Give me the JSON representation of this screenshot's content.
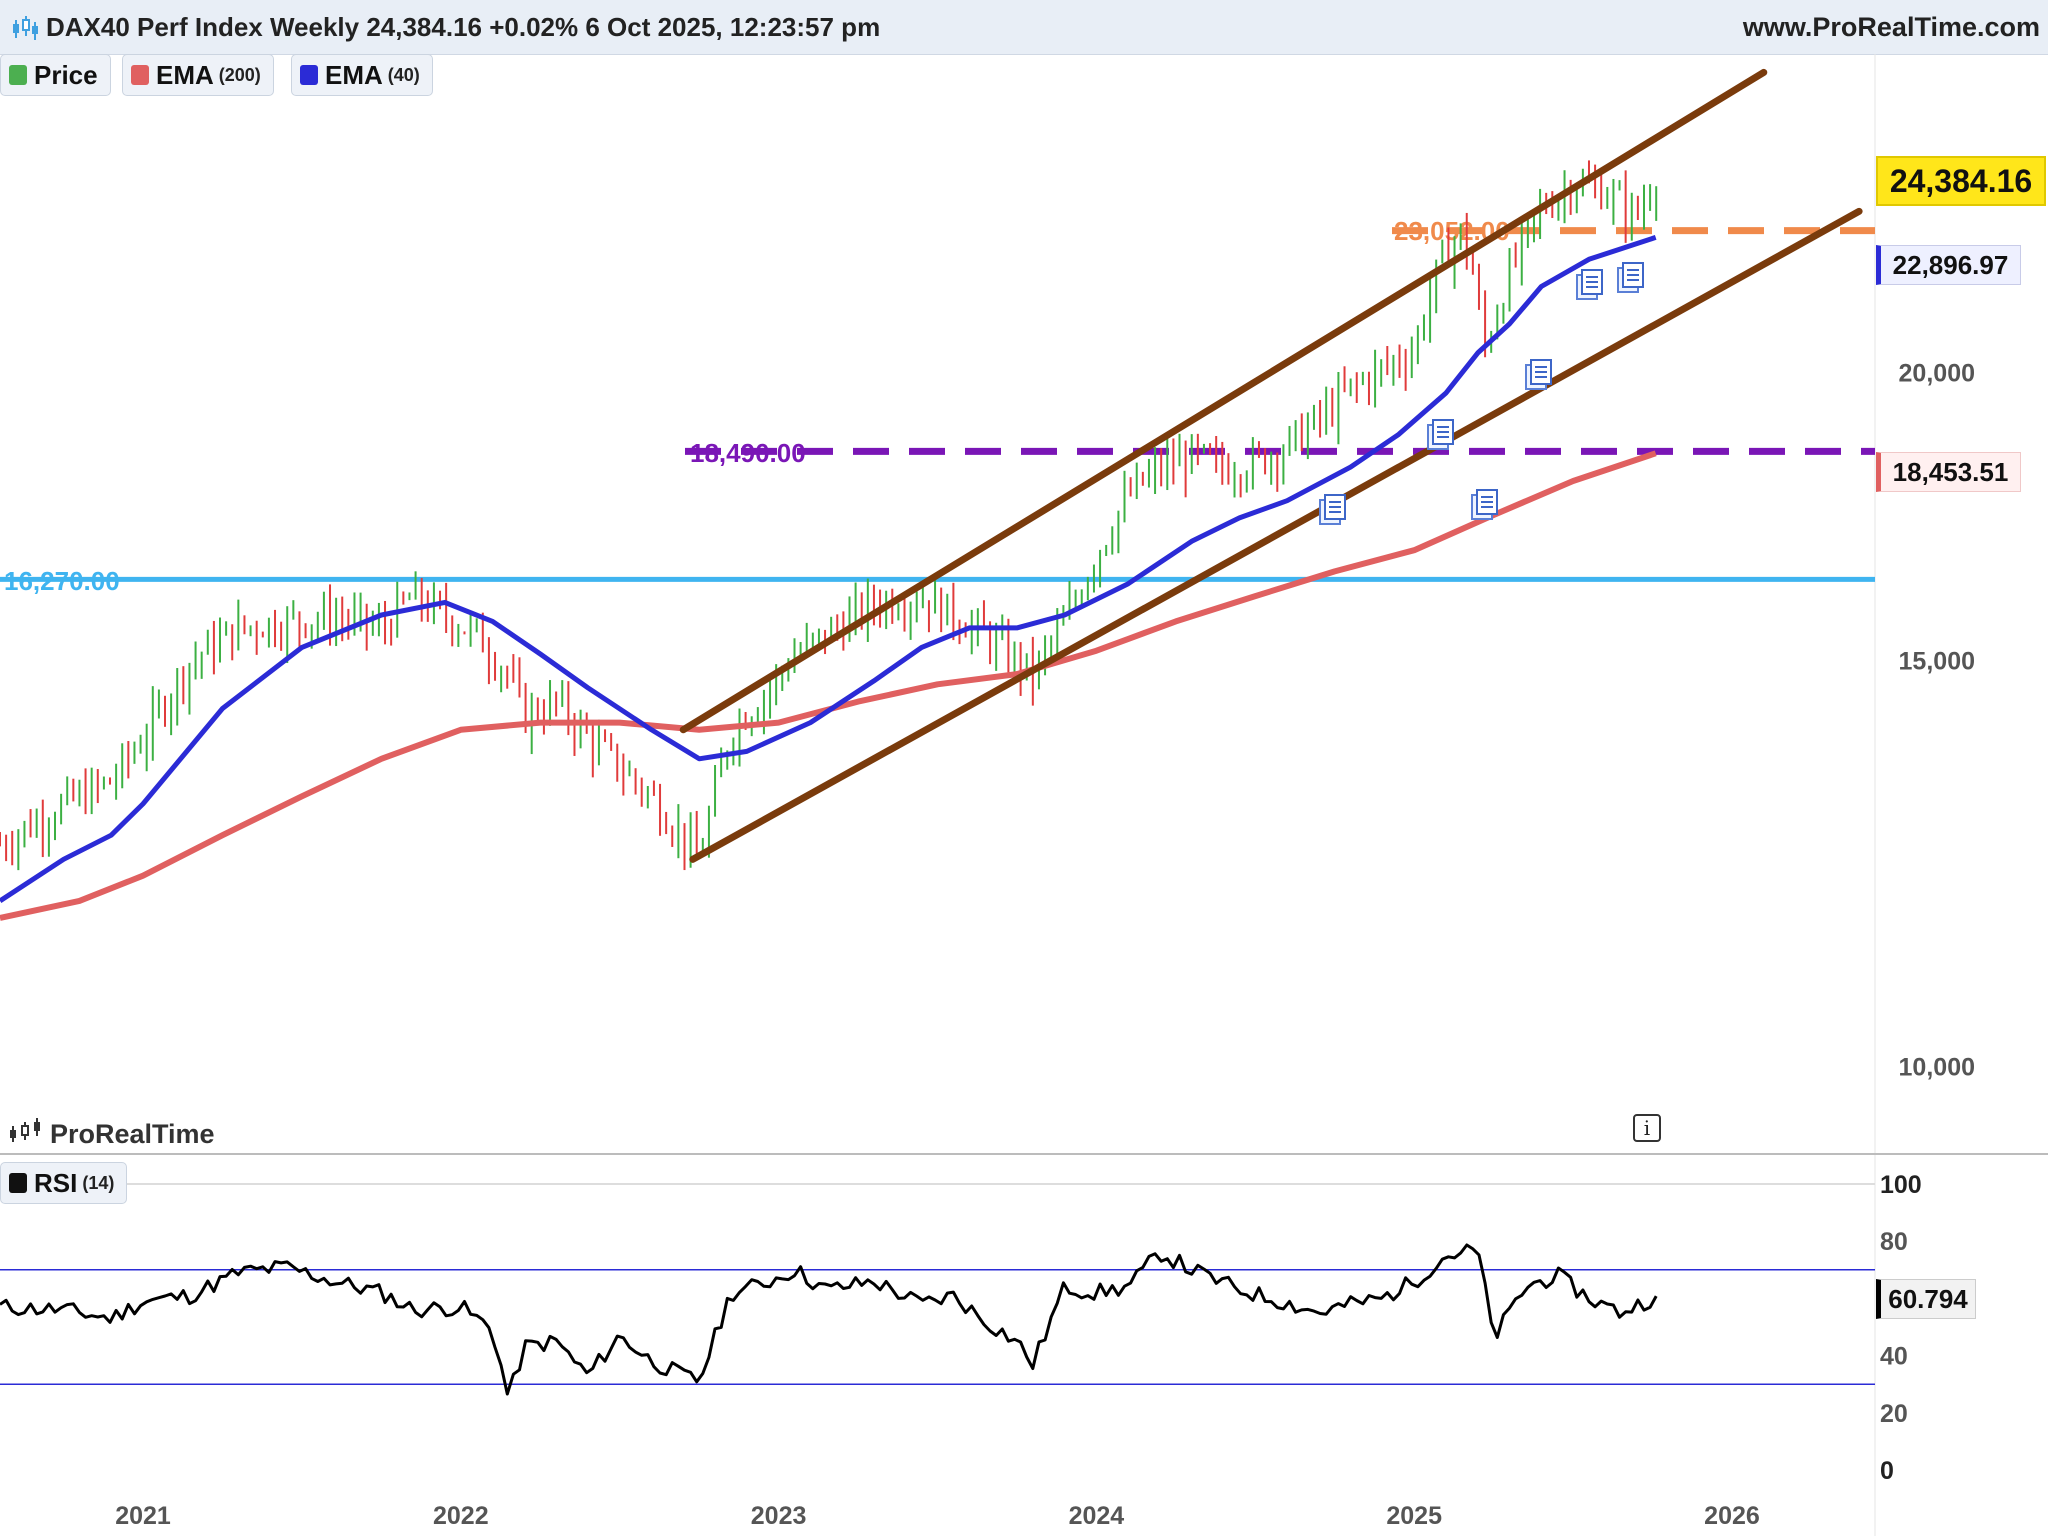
{
  "header": {
    "title": "DAX40 Perf Index Weekly 24,384.16 +0.02% 6 Oct 2025, 12:23:57 pm",
    "site": "www.ProRealTime.com"
  },
  "legend": [
    {
      "label": "Price",
      "param": "",
      "color": "#4caf50"
    },
    {
      "label": "EMA",
      "param": "(200)",
      "color": "#e06060"
    },
    {
      "label": "EMA",
      "param": "(40)",
      "color": "#2b2bd6"
    }
  ],
  "rsi_legend": {
    "label": "RSI",
    "param": "(14)",
    "color": "#111111"
  },
  "brand": "ProRealTime",
  "info_icon": "i",
  "price_tags": {
    "last": "24,384.16",
    "ema40": "22,896.97",
    "ema200": "18,453.51",
    "rsi": "60.794"
  },
  "levels": [
    {
      "label": "16,270.00",
      "value": 16270,
      "color": "#3fb4f0",
      "style": "solid"
    },
    {
      "label": "18,490.00",
      "value": 18490,
      "color": "#7a16b6",
      "style": "dashed"
    },
    {
      "label": "23,052.00",
      "value": 23052,
      "color": "#f08a4b",
      "style": "dashed"
    }
  ],
  "colors": {
    "up": "#3cb043",
    "down": "#e03b3b",
    "channel": "#7a3b0c",
    "ema200": "#e06060",
    "ema40": "#2b2bd6",
    "rsi": "#000000",
    "rsi_band": "#2b2bd6"
  },
  "chart_data": [
    {
      "type": "line",
      "title": "DAX40 Perf Index Weekly",
      "scale": "log",
      "xlabel": "",
      "ylabel": "",
      "x_ticks": [
        "2021",
        "2022",
        "2023",
        "2024",
        "2025",
        "2026"
      ],
      "y_ticks": [
        10000,
        15000,
        20000
      ],
      "y_tick_labels": [
        "10,000",
        "15,000",
        "20,000"
      ],
      "ylim": [
        9200,
        27500
      ],
      "xlim": [
        2020.55,
        2026.45
      ],
      "series": [
        {
          "name": "Price",
          "x": [
            2020.55,
            2020.75,
            2020.9,
            2021.0,
            2021.15,
            2021.3,
            2021.45,
            2021.6,
            2021.75,
            2021.85,
            2021.95,
            2022.05,
            2022.15,
            2022.2,
            2022.3,
            2022.4,
            2022.5,
            2022.6,
            2022.7,
            2022.75,
            2022.85,
            2022.95,
            2023.05,
            2023.15,
            2023.3,
            2023.45,
            2023.55,
            2023.65,
            2023.75,
            2023.8,
            2023.9,
            2024.0,
            2024.1,
            2024.2,
            2024.3,
            2024.4,
            2024.5,
            2024.6,
            2024.7,
            2024.8,
            2024.9,
            2025.0,
            2025.05,
            2025.1,
            2025.15,
            2025.18,
            2025.22,
            2025.3,
            2025.4,
            2025.5,
            2025.6,
            2025.65,
            2025.7,
            2025.76
          ],
          "values": [
            12500,
            13000,
            13300,
            13900,
            15000,
            15500,
            15600,
            15700,
            15500,
            16000,
            15700,
            15400,
            14800,
            14200,
            14400,
            13900,
            13500,
            13100,
            12600,
            12300,
            14000,
            14500,
            15100,
            15400,
            15900,
            16000,
            15700,
            15400,
            15000,
            14800,
            15600,
            16700,
            17700,
            18200,
            18400,
            18200,
            18300,
            18600,
            19100,
            19700,
            20100,
            20500,
            21700,
            22600,
            23000,
            22300,
            20500,
            22100,
            23600,
            24200,
            24000,
            23700,
            23400,
            24384.16
          ]
        },
        {
          "name": "EMA (200)",
          "x": [
            2020.55,
            2020.8,
            2021.0,
            2021.25,
            2021.5,
            2021.75,
            2022.0,
            2022.25,
            2022.5,
            2022.75,
            2023.0,
            2023.25,
            2023.5,
            2023.75,
            2024.0,
            2024.25,
            2024.5,
            2024.75,
            2025.0,
            2025.25,
            2025.5,
            2025.76
          ],
          "values": [
            11600,
            11800,
            12100,
            12600,
            13100,
            13600,
            14000,
            14100,
            14100,
            14000,
            14100,
            14400,
            14650,
            14800,
            15150,
            15600,
            16000,
            16400,
            16750,
            17350,
            17950,
            18453.51
          ]
        },
        {
          "name": "EMA (40)",
          "x": [
            2020.55,
            2020.75,
            2020.9,
            2021.0,
            2021.25,
            2021.5,
            2021.75,
            2021.95,
            2022.1,
            2022.25,
            2022.4,
            2022.6,
            2022.75,
            2022.9,
            2023.1,
            2023.3,
            2023.45,
            2023.6,
            2023.75,
            2023.9,
            2024.1,
            2024.3,
            2024.45,
            2024.6,
            2024.8,
            2024.95,
            2025.1,
            2025.2,
            2025.3,
            2025.4,
            2025.55,
            2025.76
          ],
          "values": [
            11800,
            12300,
            12600,
            13000,
            14300,
            15200,
            15700,
            15900,
            15600,
            15100,
            14600,
            14000,
            13600,
            13700,
            14100,
            14700,
            15200,
            15500,
            15500,
            15700,
            16200,
            16900,
            17300,
            17600,
            18200,
            18800,
            19600,
            20400,
            21000,
            21800,
            22400,
            22896.97
          ]
        }
      ],
      "channel": [
        {
          "name": "channel-upper",
          "x": [
            2022.7,
            2026.1
          ],
          "values": [
            14000,
            27000
          ]
        },
        {
          "name": "channel-lower",
          "x": [
            2022.73,
            2026.4
          ],
          "values": [
            12300,
            23500
          ]
        }
      ]
    },
    {
      "type": "line",
      "title": "RSI (14)",
      "ylim": [
        0,
        100
      ],
      "y_ticks": [
        0,
        20,
        40,
        60,
        80,
        100
      ],
      "bands": [
        30,
        70
      ],
      "series": [
        {
          "name": "RSI (14)",
          "x": [
            2020.55,
            2020.75,
            2020.9,
            2021.0,
            2021.15,
            2021.3,
            2021.45,
            2021.6,
            2021.75,
            2021.85,
            2022.0,
            2022.1,
            2022.15,
            2022.2,
            2022.3,
            2022.4,
            2022.5,
            2022.6,
            2022.7,
            2022.75,
            2022.85,
            2022.95,
            2023.05,
            2023.15,
            2023.3,
            2023.45,
            2023.55,
            2023.65,
            2023.75,
            2023.8,
            2023.9,
            2024.0,
            2024.1,
            2024.2,
            2024.3,
            2024.45,
            2024.55,
            2024.7,
            2024.8,
            2024.9,
            2025.0,
            2025.1,
            2025.2,
            2025.25,
            2025.35,
            2025.45,
            2025.55,
            2025.65,
            2025.76
          ],
          "values": [
            57,
            56,
            53,
            59,
            61,
            69,
            71,
            66,
            62,
            56,
            57,
            49,
            25,
            43,
            45,
            33,
            47,
            38,
            33,
            31,
            62,
            65,
            70,
            63,
            66,
            58,
            61,
            52,
            45,
            37,
            64,
            62,
            64,
            76,
            70,
            63,
            60,
            55,
            58,
            60,
            66,
            75,
            77,
            46,
            64,
            68,
            60,
            55,
            60.794
          ]
        }
      ]
    }
  ]
}
